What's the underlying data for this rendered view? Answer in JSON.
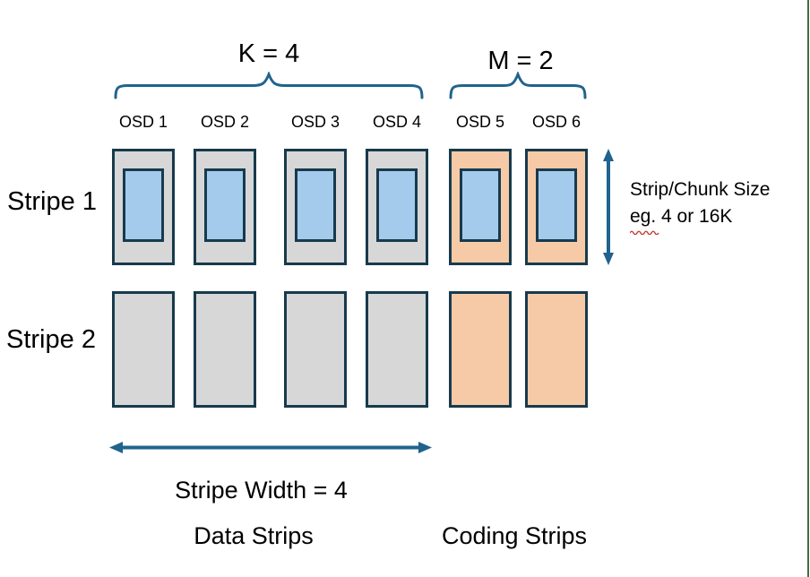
{
  "diagram": {
    "k_label": "K = 4",
    "m_label": "M = 2",
    "columns": [
      {
        "osd": "OSD 1",
        "type": "data"
      },
      {
        "osd": "OSD 2",
        "type": "data"
      },
      {
        "osd": "OSD 3",
        "type": "data"
      },
      {
        "osd": "OSD 4",
        "type": "data"
      },
      {
        "osd": "OSD 5",
        "type": "coding"
      },
      {
        "osd": "OSD 6",
        "type": "coding"
      }
    ],
    "rows": [
      {
        "label": "Stripe 1",
        "has_chunks": true
      },
      {
        "label": "Stripe 2",
        "has_chunks": false
      }
    ],
    "annotations": {
      "chunk_size_line1": "Strip/Chunk Size",
      "chunk_size_line2": "eg. 4 or 16K",
      "stripe_width": "Stripe Width = 4",
      "data_strips": "Data Strips",
      "coding_strips": "Coding Strips"
    },
    "colors": {
      "accent": "#20638d",
      "box_border": "#173a4d",
      "data_fill": "#d7d7d7",
      "coding_fill": "#f7caa7",
      "chunk_fill": "#a5cbec",
      "squiggle_red": "#c23b2e",
      "edge_green": "#466b41",
      "text": "#000000"
    }
  }
}
